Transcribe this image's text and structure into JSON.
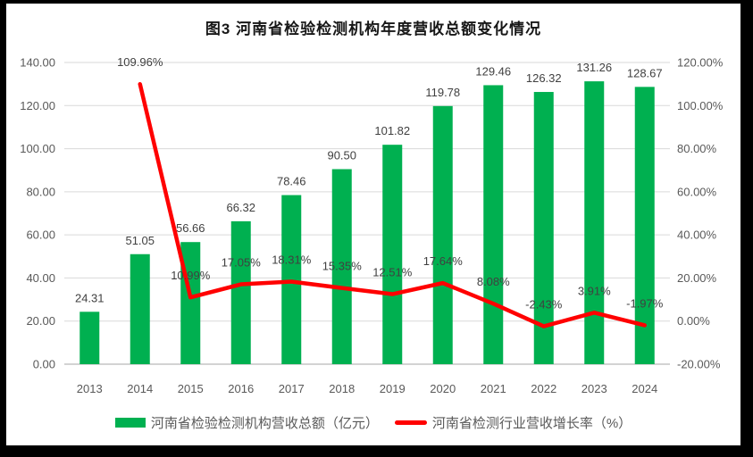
{
  "title": "图3  河南省检验检测机构年度营收总额变化情况",
  "colors": {
    "bar": "#00B050",
    "line": "#FF0000",
    "grid": "#D9D9D9",
    "axis_line": "#D3D3D3",
    "axis_text": "#595959",
    "label_text": "#404040",
    "frame": "#000000",
    "background": "#FFFFFF"
  },
  "chart_data": {
    "type": "combo",
    "title": "图3  河南省检验检测机构年度营收总额变化情况",
    "categories": [
      "2013",
      "2014",
      "2015",
      "2016",
      "2017",
      "2018",
      "2019",
      "2020",
      "2021",
      "2022",
      "2023",
      "2024"
    ],
    "series": [
      {
        "name": "河南省检验检测机构营收总额（亿元）",
        "type": "bar",
        "axis": "left",
        "color": "#00B050",
        "values": [
          24.31,
          51.05,
          56.66,
          66.32,
          78.46,
          90.5,
          101.82,
          119.78,
          129.46,
          126.32,
          131.26,
          128.67
        ],
        "labels": [
          "24.31",
          "51.05",
          "56.66",
          "66.32",
          "78.46",
          "90.50",
          "101.82",
          "119.78",
          "129.46",
          "126.32",
          "131.26",
          "128.67"
        ]
      },
      {
        "name": "河南省检测行业营收增长率（%）",
        "type": "line",
        "axis": "right",
        "color": "#FF0000",
        "values": [
          null,
          109.96,
          10.99,
          17.05,
          18.31,
          15.35,
          12.51,
          17.64,
          8.08,
          -2.43,
          3.91,
          -1.97
        ],
        "labels": [
          "",
          "109.96%",
          "10.99%",
          "17.05%",
          "18.31%",
          "15.35%",
          "12.51%",
          "17.64%",
          "8.08%",
          "-2.43%",
          "3.91%",
          "-1.97%"
        ]
      }
    ],
    "left_axis": {
      "min": 0,
      "max": 140,
      "step": 20,
      "tick_labels": [
        "0.00",
        "20.00",
        "40.00",
        "60.00",
        "80.00",
        "100.00",
        "120.00",
        "140.00"
      ]
    },
    "right_axis": {
      "min": -20,
      "max": 120,
      "step": 20,
      "tick_labels": [
        "-20.00%",
        "0.00%",
        "20.00%",
        "40.00%",
        "60.00%",
        "80.00%",
        "100.00%",
        "120.00%"
      ]
    },
    "grid": true,
    "legend_position": "bottom"
  }
}
